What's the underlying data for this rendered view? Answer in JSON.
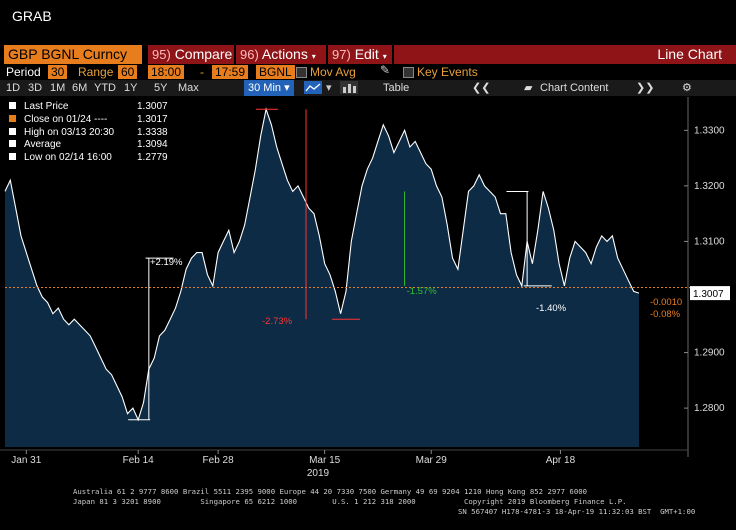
{
  "window_title": "GRAB",
  "security": "GBP BGNL Curncy",
  "menu": {
    "compare_num": "95)",
    "compare": "Compare",
    "actions_num": "96)",
    "actions": "Actions",
    "edit_num": "97)",
    "edit": "Edit",
    "chart_type": "Line Chart"
  },
  "settings": {
    "period_label": "Period",
    "period": "30",
    "range_label": "Range",
    "range": "60",
    "time_from": "18:00",
    "dash": "-",
    "time_to": "17:59",
    "source": "BGNL",
    "mov_avg": "Mov Avg",
    "key_events": "Key Events"
  },
  "timeframes": [
    "1D",
    "3D",
    "1M",
    "6M",
    "YTD",
    "1Y",
    "5Y",
    "Max"
  ],
  "interval_selected": "30 Min",
  "table_label": "Table",
  "chart_content_label": "Chart Content",
  "legend": [
    {
      "label": "Last Price",
      "value": "1.3007",
      "color": "#ffffff"
    },
    {
      "label": "Close on 01/24 ---- ",
      "value": "1.3017",
      "color": "#e87d1e"
    },
    {
      "label": "High on 03/13 20:30",
      "value": "1.3338",
      "color": "#ffffff"
    },
    {
      "label": "Average",
      "value": "1.3094",
      "color": "#ffffff"
    },
    {
      "label": "Low on 02/14 16:00",
      "value": "1.2779",
      "color": "#ffffff"
    }
  ],
  "chart_data": {
    "type": "area",
    "title": "",
    "xlabel": "2019",
    "ylabel": "",
    "ylim": [
      1.273,
      1.336
    ],
    "y_ticks": [
      "1.3300",
      "1.3200",
      "1.3100",
      "1.2900",
      "1.2800"
    ],
    "x_ticks": [
      "Jan 31",
      "Feb 14",
      "Feb 28",
      "Mar 15",
      "Mar 29",
      "Apr 18"
    ],
    "series": [
      {
        "values": [
          1.319,
          1.321,
          1.316,
          1.311,
          1.308,
          1.305,
          1.302,
          1.3,
          1.299,
          1.297,
          1.298,
          1.296,
          1.295,
          1.296,
          1.295,
          1.294,
          1.293,
          1.291,
          1.289,
          1.287,
          1.286,
          1.284,
          1.282,
          1.279,
          1.28,
          1.2779,
          1.281,
          1.287,
          1.289,
          1.293,
          1.294,
          1.296,
          1.298,
          1.301,
          1.305,
          1.307,
          1.308,
          1.308,
          1.304,
          1.302,
          1.308,
          1.31,
          1.312,
          1.308,
          1.31,
          1.313,
          1.318,
          1.323,
          1.329,
          1.3338,
          1.331,
          1.327,
          1.324,
          1.321,
          1.319,
          1.32,
          1.318,
          1.316,
          1.315,
          1.311,
          1.306,
          1.304,
          1.301,
          1.297,
          1.301,
          1.31,
          1.315,
          1.32,
          1.323,
          1.325,
          1.328,
          1.331,
          1.329,
          1.326,
          1.328,
          1.33,
          1.327,
          1.328,
          1.326,
          1.324,
          1.323,
          1.32,
          1.318,
          1.313,
          1.307,
          1.305,
          1.312,
          1.319,
          1.32,
          1.322,
          1.32,
          1.319,
          1.318,
          1.315,
          1.315,
          1.308,
          1.304,
          1.302,
          1.31,
          1.306,
          1.312,
          1.319,
          1.316,
          1.312,
          1.306,
          1.302,
          1.307,
          1.31,
          1.309,
          1.308,
          1.306,
          1.309,
          1.311,
          1.31,
          1.311,
          1.307,
          1.305,
          1.303,
          1.301,
          1.3007
        ]
      }
    ],
    "close_line": 1.3017,
    "last_price_label": "1.3007",
    "change_labels": [
      "-0.0010",
      "-0.08%"
    ],
    "annotations": [
      {
        "text": "+2.19%",
        "color": "#ffffff"
      },
      {
        "text": "-2.73%",
        "color": "#ff3333"
      },
      {
        "text": "-1.57%",
        "color": "#2fbf2f"
      },
      {
        "text": "-1.40%",
        "color": "#ffffff"
      }
    ],
    "grid": false,
    "legend_placement": "top-left"
  },
  "footer": {
    "line1": "Australia 61 2 9777 8600 Brazil 5511 2395 9000 Europe 44 20 7330 7500 Germany 49 69 9204 1210 Hong Kong 852 2977 6000",
    "line2": "Japan 81 3 3201 8900         Singapore 65 6212 1000        U.S. 1 212 318 2000           Copyright 2019 Bloomberg Finance L.P.",
    "line3": "SN 567407 H178-4781-3 18-Apr-19 11:32:03 BST  GMT+1:00"
  }
}
